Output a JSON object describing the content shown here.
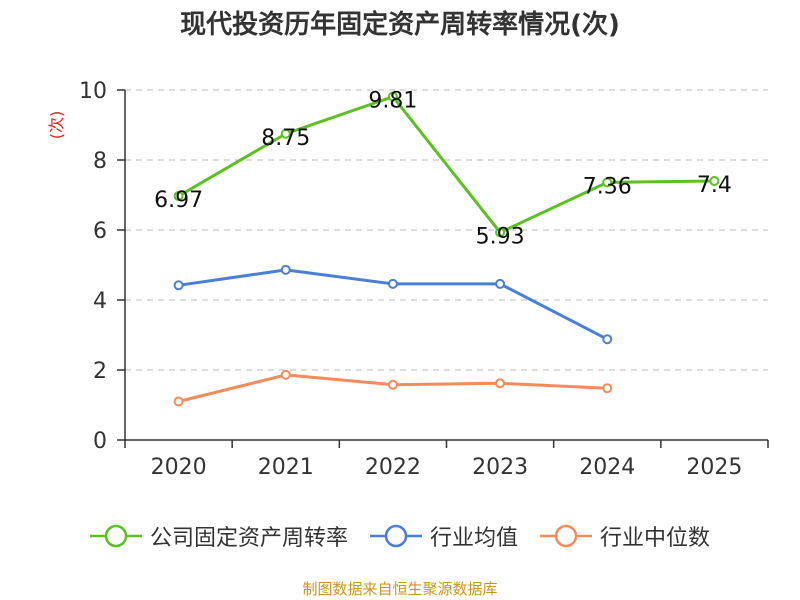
{
  "chart_data": {
    "type": "line",
    "title": "现代投资历年固定资产周转率情况(次)",
    "ylabel": "(次)",
    "categories": [
      "2020",
      "2021",
      "2022",
      "2023",
      "2024",
      "2025"
    ],
    "ylim": [
      0,
      10
    ],
    "yticks": [
      0,
      2,
      4,
      6,
      8,
      10
    ],
    "grid": true,
    "legend_position": "bottom",
    "series": [
      {
        "name": "公司固定资产周转率",
        "color": "#5dc022",
        "values": [
          6.97,
          8.75,
          9.81,
          5.93,
          7.36,
          7.4
        ],
        "data_labels": [
          "6.97",
          "8.75",
          "9.81",
          "5.93",
          "7.36",
          "7.4"
        ]
      },
      {
        "name": "行业均值",
        "color": "#4a7fd8",
        "values": [
          4.42,
          4.86,
          4.46,
          4.46,
          2.88,
          null
        ]
      },
      {
        "name": "行业中位数",
        "color": "#f58b5a",
        "values": [
          1.1,
          1.86,
          1.58,
          1.62,
          1.48,
          null
        ]
      }
    ]
  },
  "footer": "制图数据来自恒生聚源数据库"
}
